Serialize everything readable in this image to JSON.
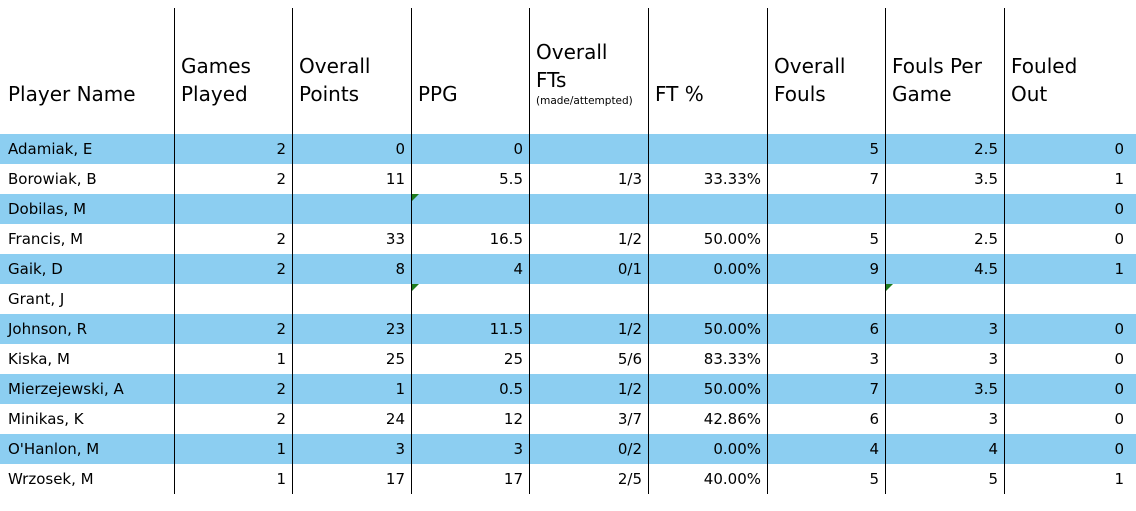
{
  "table": {
    "columns": [
      {
        "key": "name",
        "label": "Player Name",
        "lines": [
          "Player Name"
        ]
      },
      {
        "key": "games",
        "label": "Games Played",
        "lines": [
          "Games",
          "Played"
        ]
      },
      {
        "key": "points",
        "label": "Overall Points",
        "lines": [
          "Overall",
          "Points"
        ]
      },
      {
        "key": "ppg",
        "label": "PPG",
        "lines": [
          "PPG"
        ]
      },
      {
        "key": "fts",
        "label": "Overall FTs",
        "lines": [
          "Overall",
          "FTs"
        ],
        "sublabel": "(made/attempted)"
      },
      {
        "key": "ftpct",
        "label": "FT %",
        "lines": [
          "FT %"
        ]
      },
      {
        "key": "fouls",
        "label": "Overall Fouls",
        "lines": [
          "Overall",
          "Fouls"
        ]
      },
      {
        "key": "fpg",
        "label": "Fouls Per Game",
        "lines": [
          "Fouls Per",
          "Game"
        ]
      },
      {
        "key": "fouled_out",
        "label": "Fouled Out",
        "lines": [
          "Fouled",
          "Out"
        ]
      }
    ],
    "rows": [
      {
        "name": "Adamiak, E",
        "games": "2",
        "points": "0",
        "ppg": "0",
        "fts": "",
        "ftpct": "",
        "fouls": "5",
        "fpg": "2.5",
        "fouled_out": "0",
        "indicators": []
      },
      {
        "name": "Borowiak, B",
        "games": "2",
        "points": "11",
        "ppg": "5.5",
        "fts": "1/3",
        "ftpct": "33.33%",
        "fouls": "7",
        "fpg": "3.5",
        "fouled_out": "1",
        "indicators": []
      },
      {
        "name": "Dobilas, M",
        "games": "",
        "points": "",
        "ppg": "",
        "fts": "",
        "ftpct": "",
        "fouls": "",
        "fpg": "",
        "fouled_out": "0",
        "indicators": [
          "ppg"
        ]
      },
      {
        "name": "Francis, M",
        "games": "2",
        "points": "33",
        "ppg": "16.5",
        "fts": "1/2",
        "ftpct": "50.00%",
        "fouls": "5",
        "fpg": "2.5",
        "fouled_out": "0",
        "indicators": []
      },
      {
        "name": "Gaik, D",
        "games": "2",
        "points": "8",
        "ppg": "4",
        "fts": "0/1",
        "ftpct": "0.00%",
        "fouls": "9",
        "fpg": "4.5",
        "fouled_out": "1",
        "indicators": []
      },
      {
        "name": "Grant, J",
        "games": "",
        "points": "",
        "ppg": "",
        "fts": "",
        "ftpct": "",
        "fouls": "",
        "fpg": "",
        "fouled_out": "",
        "indicators": [
          "ppg",
          "fpg"
        ]
      },
      {
        "name": "Johnson, R",
        "games": "2",
        "points": "23",
        "ppg": "11.5",
        "fts": "1/2",
        "ftpct": "50.00%",
        "fouls": "6",
        "fpg": "3",
        "fouled_out": "0",
        "indicators": []
      },
      {
        "name": "Kiska, M",
        "games": "1",
        "points": "25",
        "ppg": "25",
        "fts": "5/6",
        "ftpct": "83.33%",
        "fouls": "3",
        "fpg": "3",
        "fouled_out": "0",
        "indicators": []
      },
      {
        "name": "Mierzejewski, A",
        "games": "2",
        "points": "1",
        "ppg": "0.5",
        "fts": "1/2",
        "ftpct": "50.00%",
        "fouls": "7",
        "fpg": "3.5",
        "fouled_out": "0",
        "indicators": []
      },
      {
        "name": "Minikas, K",
        "games": "2",
        "points": "24",
        "ppg": "12",
        "fts": "3/7",
        "ftpct": "42.86%",
        "fouls": "6",
        "fpg": "3",
        "fouled_out": "0",
        "indicators": []
      },
      {
        "name": "O'Hanlon, M",
        "games": "1",
        "points": "3",
        "ppg": "3",
        "fts": "0/2",
        "ftpct": "0.00%",
        "fouls": "4",
        "fpg": "4",
        "fouled_out": "0",
        "indicators": []
      },
      {
        "name": "Wrzosek, M",
        "games": "1",
        "points": "17",
        "ppg": "17",
        "fts": "2/5",
        "ftpct": "40.00%",
        "fouls": "5",
        "fpg": "5",
        "fouled_out": "1",
        "indicators": []
      }
    ],
    "colors": {
      "band_blue": "#8ccef1",
      "grid_black": "#000000",
      "error_indicator_green": "#1e7c1e"
    }
  }
}
